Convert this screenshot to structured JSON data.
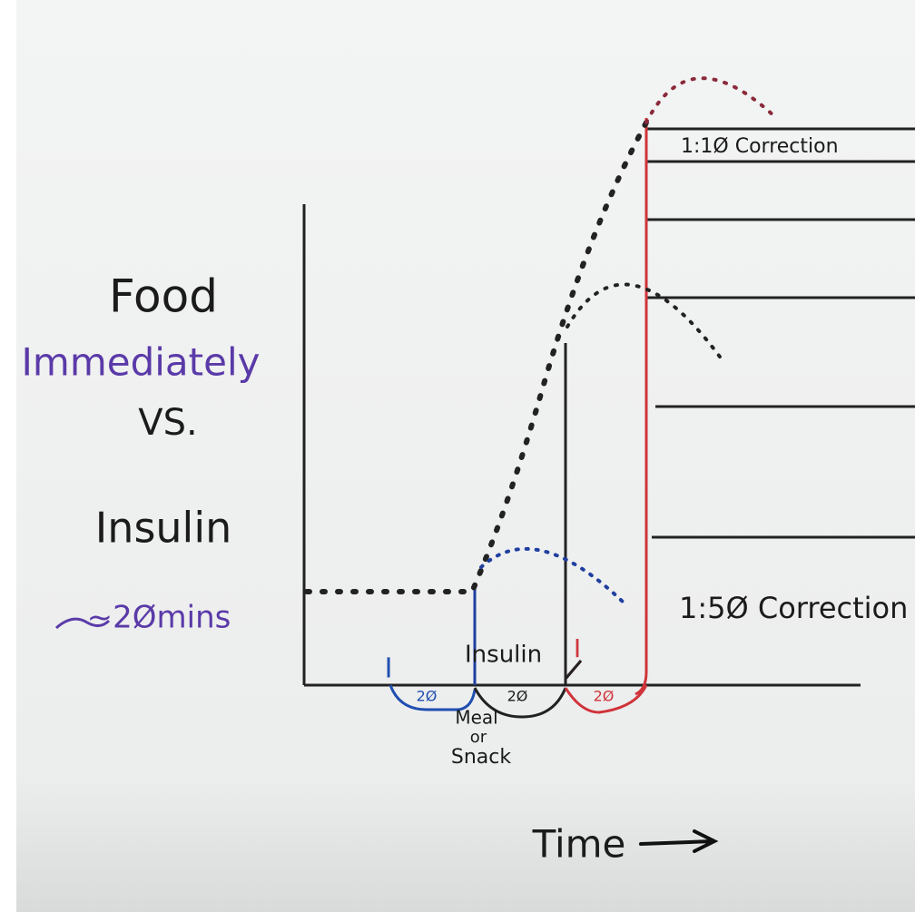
{
  "heading": {
    "line1": "Food",
    "line2": "Immediately",
    "line3": "VS.",
    "line4": "Insulin",
    "line5": "~2Ømins"
  },
  "labels": {
    "upper_correction": "1:1Ø Correction",
    "lower_correction": "1:5Ø Correction",
    "insulin": "Insulin",
    "blue_marker": "I",
    "red_marker": "I",
    "blue_interval": "2Ø",
    "black_interval": "2Ø",
    "red_interval": "2Ø",
    "meal": "Meal",
    "or": "or",
    "snack": "Snack",
    "time": "Time"
  }
}
